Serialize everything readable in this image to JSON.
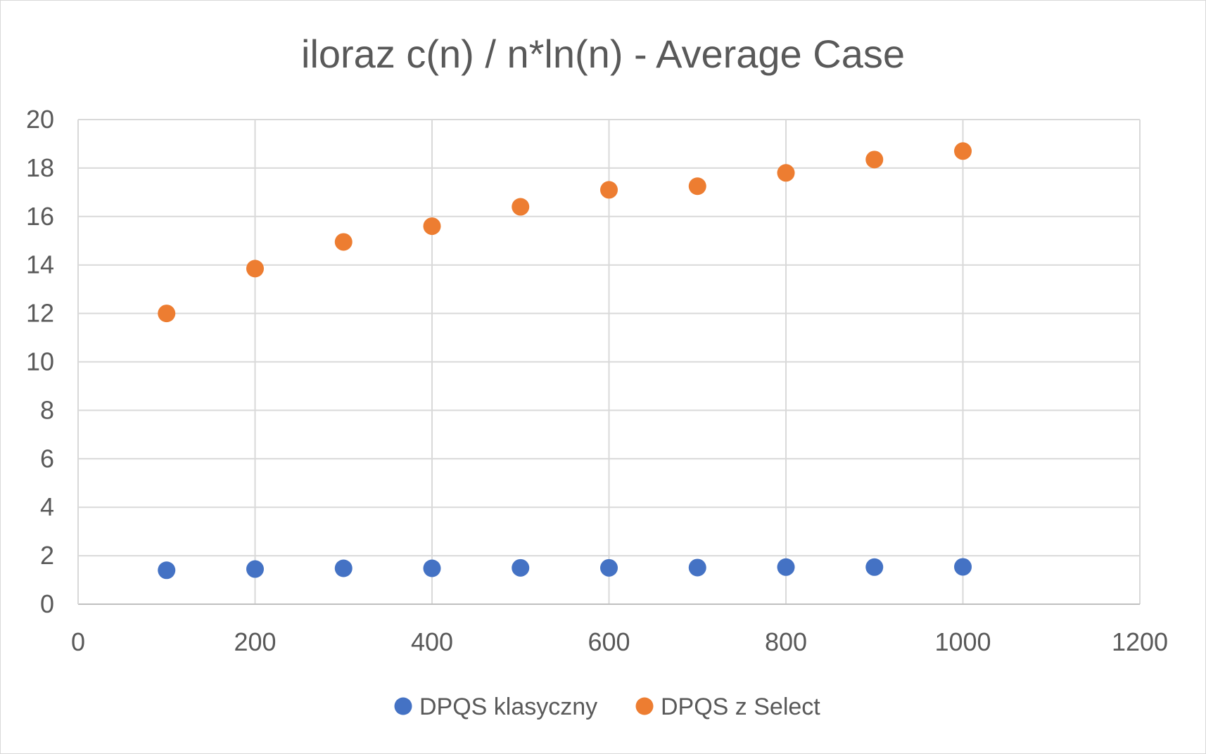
{
  "chart_data": {
    "type": "scatter",
    "title": "iloraz c(n) / n*ln(n) - Average Case",
    "xlabel": "",
    "ylabel": "",
    "xlim": [
      0,
      1200
    ],
    "ylim": [
      0,
      20
    ],
    "x_ticks": [
      0,
      200,
      400,
      600,
      800,
      1000,
      1200
    ],
    "y_ticks": [
      0,
      2,
      4,
      6,
      8,
      10,
      12,
      14,
      16,
      18,
      20
    ],
    "grid": true,
    "legend_position": "bottom",
    "series": [
      {
        "name": "DPQS klasyczny",
        "color": "#4472C4",
        "x": [
          100,
          200,
          300,
          400,
          500,
          600,
          700,
          800,
          900,
          1000
        ],
        "y": [
          1.4,
          1.45,
          1.48,
          1.48,
          1.5,
          1.5,
          1.51,
          1.53,
          1.53,
          1.54
        ]
      },
      {
        "name": "DPQS z Select",
        "color": "#ED7D31",
        "x": [
          100,
          200,
          300,
          400,
          500,
          600,
          700,
          800,
          900,
          1000
        ],
        "y": [
          12.0,
          13.85,
          14.95,
          15.6,
          16.4,
          17.1,
          17.25,
          17.8,
          18.35,
          18.7
        ]
      }
    ]
  }
}
